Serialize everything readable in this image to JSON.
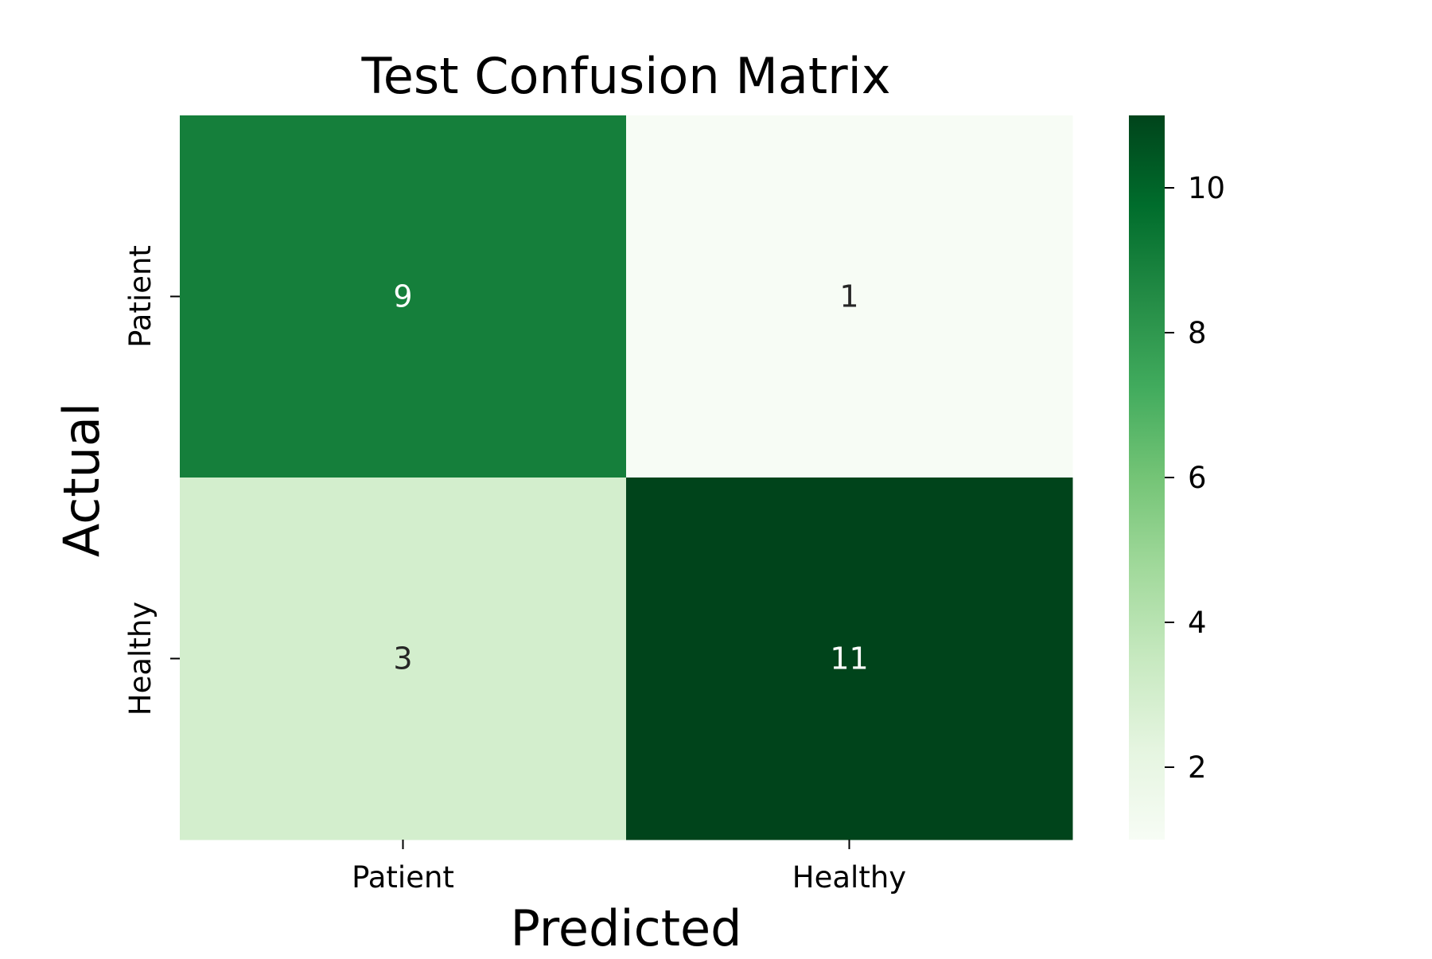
{
  "chart_data": {
    "type": "heatmap",
    "title": "Test Confusion Matrix",
    "xlabel": "Predicted",
    "ylabel": "Actual",
    "x_categories": [
      "Patient",
      "Healthy"
    ],
    "y_categories": [
      "Patient",
      "Healthy"
    ],
    "values": [
      [
        9,
        1
      ],
      [
        3,
        11
      ]
    ],
    "colormap": "Greens",
    "color_range": [
      1,
      11
    ],
    "colorbar": {
      "ticks": [
        2,
        4,
        6,
        8,
        10
      ],
      "tick_labels": [
        "2",
        "4",
        "6",
        "8",
        "10"
      ]
    },
    "grid": false,
    "legend": "colorbar-right"
  }
}
